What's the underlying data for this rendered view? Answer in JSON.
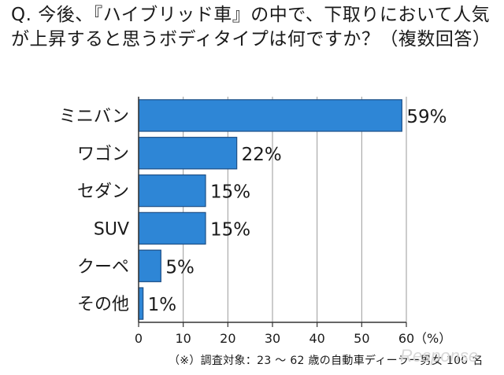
{
  "question": "Q. 今後、『ハイブリッド車』の中で、下取りにおいて人気が上昇すると思うボディタイプは何ですか？（複数回答）",
  "note": "（※）調査対象：23 ～ 62 歳の自動車ディーラー男女 100 名",
  "watermark": "Response",
  "colors": {
    "bar": "#2e86d6",
    "bar_stroke": "#1d4f86",
    "axis": "#333333",
    "grid": "#9a9a9a"
  },
  "chart_data": {
    "type": "bar",
    "orientation": "horizontal",
    "categories": [
      "ミニバン",
      "ワゴン",
      "セダン",
      "SUV",
      "クーペ",
      "その他"
    ],
    "values": [
      59,
      22,
      15,
      15,
      5,
      1
    ],
    "value_labels": [
      "59%",
      "22%",
      "15%",
      "15%",
      "5%",
      "1%"
    ],
    "xlim": [
      0,
      60
    ],
    "xticks": [
      "0",
      "10",
      "20",
      "30",
      "40",
      "50",
      "60"
    ],
    "xunit": "（%）",
    "grid": true
  }
}
